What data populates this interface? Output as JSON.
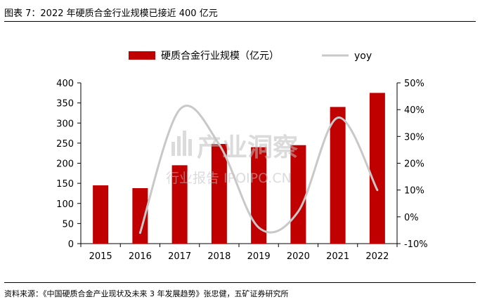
{
  "figure_title": "图表 7：2022 年硬质合金行业规模已接近 400 亿元",
  "source_note": "资料来源：《中国硬质合金产业现状及未来 3 年发展趋势》张忠健，五矿证券研究所",
  "watermark": {
    "brand": "产业洞察",
    "site": "行业报告 IPOIPO.CN"
  },
  "chart_data": {
    "type": "bar",
    "categories": [
      "2015",
      "2016",
      "2017",
      "2018",
      "2019",
      "2020",
      "2021",
      "2022"
    ],
    "series": [
      {
        "name": "硬质合金行业规模（亿元）",
        "type": "bar",
        "axis": "left",
        "color": "#c00000",
        "values": [
          145,
          138,
          195,
          248,
          240,
          245,
          340,
          375
        ]
      },
      {
        "name": "yoy",
        "type": "line",
        "axis": "right",
        "color": "#c8c8c8",
        "values": [
          null,
          -0.06,
          0.4,
          0.27,
          -0.04,
          0.02,
          0.37,
          0.1
        ]
      }
    ],
    "yleft": {
      "min": 0,
      "max": 400,
      "ticks": [
        0,
        50,
        100,
        150,
        200,
        250,
        300,
        350,
        400
      ]
    },
    "yright": {
      "min": -0.1,
      "max": 0.5,
      "ticks": [
        -0.1,
        0.0,
        0.1,
        0.2,
        0.3,
        0.4,
        0.5
      ],
      "tick_labels": [
        "-10%",
        "0%",
        "10%",
        "20%",
        "30%",
        "40%",
        "50%"
      ]
    },
    "legend_position": "top"
  }
}
